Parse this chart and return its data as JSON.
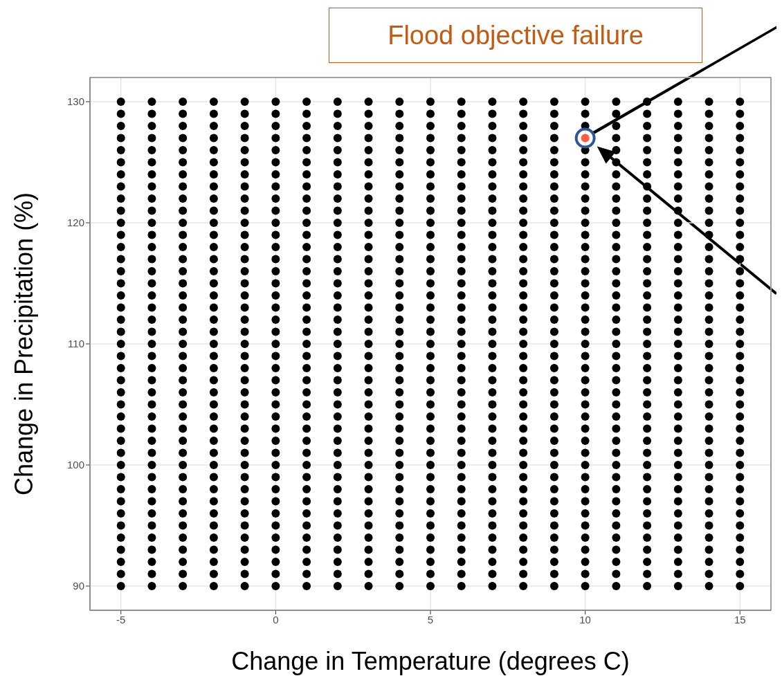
{
  "chart_data": {
    "type": "scatter",
    "title": "Flood objective failure",
    "xlabel": "Change in Temperature (degrees C)",
    "ylabel": "Change in Precipitation (%)",
    "xlim": [
      -6,
      16
    ],
    "ylim": [
      88,
      132
    ],
    "xticks": [
      -5,
      0,
      5,
      10,
      15
    ],
    "yticks": [
      90,
      100,
      110,
      120,
      130
    ],
    "grid": true,
    "marker": "circle",
    "series": [
      {
        "color": "#000000",
        "x": [
          -5,
          -5,
          -5,
          -5,
          -5,
          -5,
          -5,
          -5,
          -5,
          -5,
          -5,
          -5,
          -5,
          -5,
          -5,
          -5,
          -5,
          -5,
          -5,
          -5,
          -5,
          -5,
          -5,
          -5,
          -5,
          -5,
          -5,
          -5,
          -5,
          -5,
          -5,
          -5,
          -5,
          -5,
          -5,
          -5,
          -5,
          -5,
          -5,
          -5,
          -5
        ],
        "values": [
          90,
          91,
          92,
          93,
          94,
          95,
          96,
          97,
          98,
          99,
          100,
          101,
          102,
          103,
          104,
          105,
          106,
          107,
          108,
          109,
          110,
          111,
          112,
          113,
          114,
          115,
          116,
          117,
          118,
          119,
          120,
          121,
          122,
          123,
          124,
          125,
          126,
          127,
          128,
          129,
          130
        ]
      },
      {
        "color": "#000000",
        "x": [
          -4,
          -4,
          -4,
          -4,
          -4,
          -4,
          -4,
          -4,
          -4,
          -4,
          -4,
          -4,
          -4,
          -4,
          -4,
          -4,
          -4,
          -4,
          -4,
          -4,
          -4,
          -4,
          -4,
          -4,
          -4,
          -4,
          -4,
          -4,
          -4,
          -4,
          -4,
          -4,
          -4,
          -4,
          -4,
          -4,
          -4,
          -4,
          -4,
          -4,
          -4
        ],
        "values": [
          90,
          91,
          92,
          93,
          94,
          95,
          96,
          97,
          98,
          99,
          100,
          101,
          102,
          103,
          104,
          105,
          106,
          107,
          108,
          109,
          110,
          111,
          112,
          113,
          114,
          115,
          116,
          117,
          118,
          119,
          120,
          121,
          122,
          123,
          124,
          125,
          126,
          127,
          128,
          129,
          130
        ]
      },
      {
        "color": "#000000",
        "x": [
          -3,
          -3,
          -3,
          -3,
          -3,
          -3,
          -3,
          -3,
          -3,
          -3,
          -3,
          -3,
          -3,
          -3,
          -3,
          -3,
          -3,
          -3,
          -3,
          -3,
          -3,
          -3,
          -3,
          -3,
          -3,
          -3,
          -3,
          -3,
          -3,
          -3,
          -3,
          -3,
          -3,
          -3,
          -3,
          -3,
          -3,
          -3,
          -3,
          -3,
          -3
        ],
        "values": [
          90,
          91,
          92,
          93,
          94,
          95,
          96,
          97,
          98,
          99,
          100,
          101,
          102,
          103,
          104,
          105,
          106,
          107,
          108,
          109,
          110,
          111,
          112,
          113,
          114,
          115,
          116,
          117,
          118,
          119,
          120,
          121,
          122,
          123,
          124,
          125,
          126,
          127,
          128,
          129,
          130
        ]
      },
      {
        "color": "#000000",
        "x": [
          -2,
          -2,
          -2,
          -2,
          -2,
          -2,
          -2,
          -2,
          -2,
          -2,
          -2,
          -2,
          -2,
          -2,
          -2,
          -2,
          -2,
          -2,
          -2,
          -2,
          -2,
          -2,
          -2,
          -2,
          -2,
          -2,
          -2,
          -2,
          -2,
          -2,
          -2,
          -2,
          -2,
          -2,
          -2,
          -2,
          -2,
          -2,
          -2,
          -2,
          -2
        ],
        "values": [
          90,
          91,
          92,
          93,
          94,
          95,
          96,
          97,
          98,
          99,
          100,
          101,
          102,
          103,
          104,
          105,
          106,
          107,
          108,
          109,
          110,
          111,
          112,
          113,
          114,
          115,
          116,
          117,
          118,
          119,
          120,
          121,
          122,
          123,
          124,
          125,
          126,
          127,
          128,
          129,
          130
        ]
      },
      {
        "color": "#000000",
        "x": [
          -1,
          -1,
          -1,
          -1,
          -1,
          -1,
          -1,
          -1,
          -1,
          -1,
          -1,
          -1,
          -1,
          -1,
          -1,
          -1,
          -1,
          -1,
          -1,
          -1,
          -1,
          -1,
          -1,
          -1,
          -1,
          -1,
          -1,
          -1,
          -1,
          -1,
          -1,
          -1,
          -1,
          -1,
          -1,
          -1,
          -1,
          -1,
          -1,
          -1,
          -1
        ],
        "values": [
          90,
          91,
          92,
          93,
          94,
          95,
          96,
          97,
          98,
          99,
          100,
          101,
          102,
          103,
          104,
          105,
          106,
          107,
          108,
          109,
          110,
          111,
          112,
          113,
          114,
          115,
          116,
          117,
          118,
          119,
          120,
          121,
          122,
          123,
          124,
          125,
          126,
          127,
          128,
          129,
          130
        ]
      },
      {
        "color": "#000000",
        "x": [
          0,
          0,
          0,
          0,
          0,
          0,
          0,
          0,
          0,
          0,
          0,
          0,
          0,
          0,
          0,
          0,
          0,
          0,
          0,
          0,
          0,
          0,
          0,
          0,
          0,
          0,
          0,
          0,
          0,
          0,
          0,
          0,
          0,
          0,
          0,
          0,
          0,
          0,
          0,
          0,
          0
        ],
        "values": [
          90,
          91,
          92,
          93,
          94,
          95,
          96,
          97,
          98,
          99,
          100,
          101,
          102,
          103,
          104,
          105,
          106,
          107,
          108,
          109,
          110,
          111,
          112,
          113,
          114,
          115,
          116,
          117,
          118,
          119,
          120,
          121,
          122,
          123,
          124,
          125,
          126,
          127,
          128,
          129,
          130
        ]
      },
      {
        "color": "#000000",
        "x": [
          1,
          1,
          1,
          1,
          1,
          1,
          1,
          1,
          1,
          1,
          1,
          1,
          1,
          1,
          1,
          1,
          1,
          1,
          1,
          1,
          1,
          1,
          1,
          1,
          1,
          1,
          1,
          1,
          1,
          1,
          1,
          1,
          1,
          1,
          1,
          1,
          1,
          1,
          1,
          1,
          1
        ],
        "values": [
          90,
          91,
          92,
          93,
          94,
          95,
          96,
          97,
          98,
          99,
          100,
          101,
          102,
          103,
          104,
          105,
          106,
          107,
          108,
          109,
          110,
          111,
          112,
          113,
          114,
          115,
          116,
          117,
          118,
          119,
          120,
          121,
          122,
          123,
          124,
          125,
          126,
          127,
          128,
          129,
          130
        ]
      },
      {
        "color": "#000000",
        "x": [
          2,
          2,
          2,
          2,
          2,
          2,
          2,
          2,
          2,
          2,
          2,
          2,
          2,
          2,
          2,
          2,
          2,
          2,
          2,
          2,
          2,
          2,
          2,
          2,
          2,
          2,
          2,
          2,
          2,
          2,
          2,
          2,
          2,
          2,
          2,
          2,
          2,
          2,
          2,
          2,
          2
        ],
        "values": [
          90,
          91,
          92,
          93,
          94,
          95,
          96,
          97,
          98,
          99,
          100,
          101,
          102,
          103,
          104,
          105,
          106,
          107,
          108,
          109,
          110,
          111,
          112,
          113,
          114,
          115,
          116,
          117,
          118,
          119,
          120,
          121,
          122,
          123,
          124,
          125,
          126,
          127,
          128,
          129,
          130
        ]
      },
      {
        "color": "#000000",
        "x": [
          3,
          3,
          3,
          3,
          3,
          3,
          3,
          3,
          3,
          3,
          3,
          3,
          3,
          3,
          3,
          3,
          3,
          3,
          3,
          3,
          3,
          3,
          3,
          3,
          3,
          3,
          3,
          3,
          3,
          3,
          3,
          3,
          3,
          3,
          3,
          3,
          3,
          3,
          3,
          3,
          3
        ],
        "values": [
          90,
          91,
          92,
          93,
          94,
          95,
          96,
          97,
          98,
          99,
          100,
          101,
          102,
          103,
          104,
          105,
          106,
          107,
          108,
          109,
          110,
          111,
          112,
          113,
          114,
          115,
          116,
          117,
          118,
          119,
          120,
          121,
          122,
          123,
          124,
          125,
          126,
          127,
          128,
          129,
          130
        ]
      },
      {
        "color": "#000000",
        "x": [
          4,
          4,
          4,
          4,
          4,
          4,
          4,
          4,
          4,
          4,
          4,
          4,
          4,
          4,
          4,
          4,
          4,
          4,
          4,
          4,
          4,
          4,
          4,
          4,
          4,
          4,
          4,
          4,
          4,
          4,
          4,
          4,
          4,
          4,
          4,
          4,
          4,
          4,
          4,
          4,
          4
        ],
        "values": [
          90,
          91,
          92,
          93,
          94,
          95,
          96,
          97,
          98,
          99,
          100,
          101,
          102,
          103,
          104,
          105,
          106,
          107,
          108,
          109,
          110,
          111,
          112,
          113,
          114,
          115,
          116,
          117,
          118,
          119,
          120,
          121,
          122,
          123,
          124,
          125,
          126,
          127,
          128,
          129,
          130
        ]
      },
      {
        "color": "#000000",
        "x": [
          5,
          5,
          5,
          5,
          5,
          5,
          5,
          5,
          5,
          5,
          5,
          5,
          5,
          5,
          5,
          5,
          5,
          5,
          5,
          5,
          5,
          5,
          5,
          5,
          5,
          5,
          5,
          5,
          5,
          5,
          5,
          5,
          5,
          5,
          5,
          5,
          5,
          5,
          5,
          5,
          5
        ],
        "values": [
          90,
          91,
          92,
          93,
          94,
          95,
          96,
          97,
          98,
          99,
          100,
          101,
          102,
          103,
          104,
          105,
          106,
          107,
          108,
          109,
          110,
          111,
          112,
          113,
          114,
          115,
          116,
          117,
          118,
          119,
          120,
          121,
          122,
          123,
          124,
          125,
          126,
          127,
          128,
          129,
          130
        ]
      },
      {
        "color": "#000000",
        "x": [
          6,
          6,
          6,
          6,
          6,
          6,
          6,
          6,
          6,
          6,
          6,
          6,
          6,
          6,
          6,
          6,
          6,
          6,
          6,
          6,
          6,
          6,
          6,
          6,
          6,
          6,
          6,
          6,
          6,
          6,
          6,
          6,
          6,
          6,
          6,
          6,
          6,
          6,
          6,
          6,
          6
        ],
        "values": [
          90,
          91,
          92,
          93,
          94,
          95,
          96,
          97,
          98,
          99,
          100,
          101,
          102,
          103,
          104,
          105,
          106,
          107,
          108,
          109,
          110,
          111,
          112,
          113,
          114,
          115,
          116,
          117,
          118,
          119,
          120,
          121,
          122,
          123,
          124,
          125,
          126,
          127,
          128,
          129,
          130
        ]
      },
      {
        "color": "#000000",
        "x": [
          7,
          7,
          7,
          7,
          7,
          7,
          7,
          7,
          7,
          7,
          7,
          7,
          7,
          7,
          7,
          7,
          7,
          7,
          7,
          7,
          7,
          7,
          7,
          7,
          7,
          7,
          7,
          7,
          7,
          7,
          7,
          7,
          7,
          7,
          7,
          7,
          7,
          7,
          7,
          7,
          7
        ],
        "values": [
          90,
          91,
          92,
          93,
          94,
          95,
          96,
          97,
          98,
          99,
          100,
          101,
          102,
          103,
          104,
          105,
          106,
          107,
          108,
          109,
          110,
          111,
          112,
          113,
          114,
          115,
          116,
          117,
          118,
          119,
          120,
          121,
          122,
          123,
          124,
          125,
          126,
          127,
          128,
          129,
          130
        ]
      },
      {
        "color": "#000000",
        "x": [
          8,
          8,
          8,
          8,
          8,
          8,
          8,
          8,
          8,
          8,
          8,
          8,
          8,
          8,
          8,
          8,
          8,
          8,
          8,
          8,
          8,
          8,
          8,
          8,
          8,
          8,
          8,
          8,
          8,
          8,
          8,
          8,
          8,
          8,
          8,
          8,
          8,
          8,
          8,
          8,
          8
        ],
        "values": [
          90,
          91,
          92,
          93,
          94,
          95,
          96,
          97,
          98,
          99,
          100,
          101,
          102,
          103,
          104,
          105,
          106,
          107,
          108,
          109,
          110,
          111,
          112,
          113,
          114,
          115,
          116,
          117,
          118,
          119,
          120,
          121,
          122,
          123,
          124,
          125,
          126,
          127,
          128,
          129,
          130
        ]
      },
      {
        "color": "#000000",
        "x": [
          9,
          9,
          9,
          9,
          9,
          9,
          9,
          9,
          9,
          9,
          9,
          9,
          9,
          9,
          9,
          9,
          9,
          9,
          9,
          9,
          9,
          9,
          9,
          9,
          9,
          9,
          9,
          9,
          9,
          9,
          9,
          9,
          9,
          9,
          9,
          9,
          9,
          9,
          9,
          9,
          9
        ],
        "values": [
          90,
          91,
          92,
          93,
          94,
          95,
          96,
          97,
          98,
          99,
          100,
          101,
          102,
          103,
          104,
          105,
          106,
          107,
          108,
          109,
          110,
          111,
          112,
          113,
          114,
          115,
          116,
          117,
          118,
          119,
          120,
          121,
          122,
          123,
          124,
          125,
          126,
          127,
          128,
          129,
          130
        ]
      },
      {
        "color": "#000000",
        "x": [
          10,
          10,
          10,
          10,
          10,
          10,
          10,
          10,
          10,
          10,
          10,
          10,
          10,
          10,
          10,
          10,
          10,
          10,
          10,
          10,
          10,
          10,
          10,
          10,
          10,
          10,
          10,
          10,
          10,
          10,
          10,
          10,
          10,
          10,
          10,
          10,
          10,
          10,
          10,
          10
        ],
        "values": [
          90,
          91,
          92,
          93,
          94,
          95,
          96,
          97,
          98,
          99,
          100,
          101,
          102,
          103,
          104,
          105,
          106,
          107,
          108,
          109,
          110,
          111,
          112,
          113,
          114,
          115,
          116,
          117,
          118,
          119,
          120,
          121,
          122,
          123,
          124,
          125,
          126,
          128,
          129,
          130
        ]
      },
      {
        "color": "#000000",
        "x": [
          11,
          11,
          11,
          11,
          11,
          11,
          11,
          11,
          11,
          11,
          11,
          11,
          11,
          11,
          11,
          11,
          11,
          11,
          11,
          11,
          11,
          11,
          11,
          11,
          11,
          11,
          11,
          11,
          11,
          11,
          11,
          11,
          11,
          11,
          11,
          11,
          11,
          11,
          11,
          11,
          11
        ],
        "values": [
          90,
          91,
          92,
          93,
          94,
          95,
          96,
          97,
          98,
          99,
          100,
          101,
          102,
          103,
          104,
          105,
          106,
          107,
          108,
          109,
          110,
          111,
          112,
          113,
          114,
          115,
          116,
          117,
          118,
          119,
          120,
          121,
          122,
          123,
          124,
          125,
          126,
          127,
          128,
          129,
          130
        ]
      },
      {
        "color": "#000000",
        "x": [
          12,
          12,
          12,
          12,
          12,
          12,
          12,
          12,
          12,
          12,
          12,
          12,
          12,
          12,
          12,
          12,
          12,
          12,
          12,
          12,
          12,
          12,
          12,
          12,
          12,
          12,
          12,
          12,
          12,
          12,
          12,
          12,
          12,
          12,
          12,
          12,
          12,
          12,
          12,
          12,
          12
        ],
        "values": [
          90,
          91,
          92,
          93,
          94,
          95,
          96,
          97,
          98,
          99,
          100,
          101,
          102,
          103,
          104,
          105,
          106,
          107,
          108,
          109,
          110,
          111,
          112,
          113,
          114,
          115,
          116,
          117,
          118,
          119,
          120,
          121,
          122,
          123,
          124,
          125,
          126,
          127,
          128,
          129,
          130
        ]
      },
      {
        "color": "#000000",
        "x": [
          13,
          13,
          13,
          13,
          13,
          13,
          13,
          13,
          13,
          13,
          13,
          13,
          13,
          13,
          13,
          13,
          13,
          13,
          13,
          13,
          13,
          13,
          13,
          13,
          13,
          13,
          13,
          13,
          13,
          13,
          13,
          13,
          13,
          13,
          13,
          13,
          13,
          13,
          13,
          13,
          13
        ],
        "values": [
          90,
          91,
          92,
          93,
          94,
          95,
          96,
          97,
          98,
          99,
          100,
          101,
          102,
          103,
          104,
          105,
          106,
          107,
          108,
          109,
          110,
          111,
          112,
          113,
          114,
          115,
          116,
          117,
          118,
          119,
          120,
          121,
          122,
          123,
          124,
          125,
          126,
          127,
          128,
          129,
          130
        ]
      },
      {
        "color": "#000000",
        "x": [
          14,
          14,
          14,
          14,
          14,
          14,
          14,
          14,
          14,
          14,
          14,
          14,
          14,
          14,
          14,
          14,
          14,
          14,
          14,
          14,
          14,
          14,
          14,
          14,
          14,
          14,
          14,
          14,
          14,
          14,
          14,
          14,
          14,
          14,
          14,
          14,
          14,
          14,
          14,
          14,
          14
        ],
        "values": [
          90,
          91,
          92,
          93,
          94,
          95,
          96,
          97,
          98,
          99,
          100,
          101,
          102,
          103,
          104,
          105,
          106,
          107,
          108,
          109,
          110,
          111,
          112,
          113,
          114,
          115,
          116,
          117,
          118,
          119,
          120,
          121,
          122,
          123,
          124,
          125,
          126,
          127,
          128,
          129,
          130
        ]
      },
      {
        "color": "#000000",
        "x": [
          15,
          15,
          15,
          15,
          15,
          15,
          15,
          15,
          15,
          15,
          15,
          15,
          15,
          15,
          15,
          15,
          15,
          15,
          15,
          15,
          15,
          15,
          15,
          15,
          15,
          15,
          15,
          15,
          15,
          15,
          15,
          15,
          15,
          15,
          15,
          15,
          15,
          15,
          15,
          15,
          15
        ],
        "values": [
          90,
          91,
          92,
          93,
          94,
          95,
          96,
          97,
          98,
          99,
          100,
          101,
          102,
          103,
          104,
          105,
          106,
          107,
          108,
          109,
          110,
          111,
          112,
          113,
          114,
          115,
          116,
          117,
          118,
          119,
          120,
          121,
          122,
          123,
          124,
          125,
          126,
          127,
          128,
          129,
          130
        ]
      },
      {
        "color": "#ff5a46",
        "x": [
          10
        ],
        "values": [
          127
        ]
      }
    ]
  }
}
